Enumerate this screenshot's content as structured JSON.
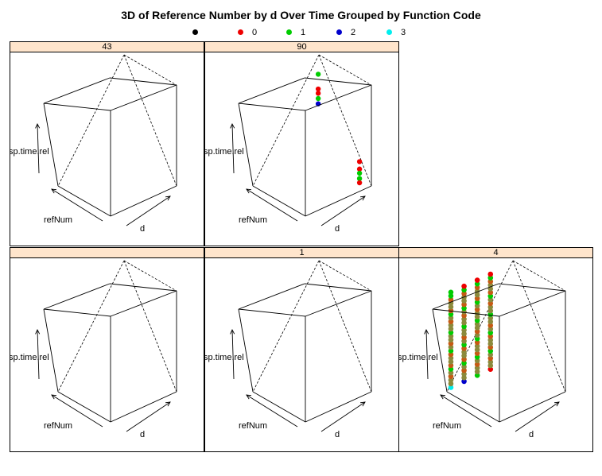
{
  "chart_data": {
    "type": "scatter",
    "title": "3D of Reference Number by d Over Time Grouped by Function Code",
    "axes": {
      "x": "refNum",
      "y": "d",
      "z": "sp.time.rel"
    },
    "legend": {
      "placement": "top",
      "items": [
        {
          "label": "",
          "color": "#000000"
        },
        {
          "label": "0",
          "color": "#ee0000"
        },
        {
          "label": "1",
          "color": "#00cc00"
        },
        {
          "label": "2",
          "color": "#0000cc"
        },
        {
          "label": "3",
          "color": "#00eeee"
        }
      ]
    },
    "panels": [
      {
        "strip": "43",
        "points": []
      },
      {
        "strip": "90",
        "points": [
          {
            "u": 0.1,
            "v": 0.9,
            "w": 0.23,
            "group": "0"
          },
          {
            "u": 0.1,
            "v": 0.9,
            "w": 0.16,
            "group": "0"
          },
          {
            "u": 0.1,
            "v": 0.9,
            "w": 0.12,
            "group": "1"
          },
          {
            "u": 0.1,
            "v": 0.9,
            "w": 0.07,
            "group": "1"
          },
          {
            "u": 0.1,
            "v": 0.9,
            "w": 0.03,
            "group": "0"
          },
          {
            "u": 0.95,
            "v": 0.95,
            "w": 0.8,
            "group": "1"
          },
          {
            "u": 0.95,
            "v": 0.95,
            "w": 0.66,
            "group": "0"
          },
          {
            "u": 0.95,
            "v": 0.95,
            "w": 0.62,
            "group": "0"
          },
          {
            "u": 0.95,
            "v": 0.95,
            "w": 0.57,
            "group": "1"
          },
          {
            "u": 0.95,
            "v": 0.95,
            "w": 0.52,
            "group": "2"
          }
        ]
      },
      {
        "strip": "",
        "points": []
      },
      {
        "strip": "1",
        "points": []
      },
      {
        "strip": "4",
        "columns": [
          {
            "u": 0.95,
            "v": 0.02,
            "w0": 0.05,
            "w1": 0.95,
            "topGroup": "1",
            "bottomGroup": "3"
          },
          {
            "u": 0.95,
            "v": 0.22,
            "w0": 0.05,
            "w1": 0.95,
            "topGroup": "0",
            "bottomGroup": "2"
          },
          {
            "u": 0.95,
            "v": 0.42,
            "w0": 0.05,
            "w1": 0.95,
            "topGroup": "0",
            "bottomGroup": "1"
          },
          {
            "u": 0.95,
            "v": 0.62,
            "w0": 0.05,
            "w1": 0.95,
            "topGroup": "0",
            "bottomGroup": "0"
          }
        ]
      }
    ]
  }
}
